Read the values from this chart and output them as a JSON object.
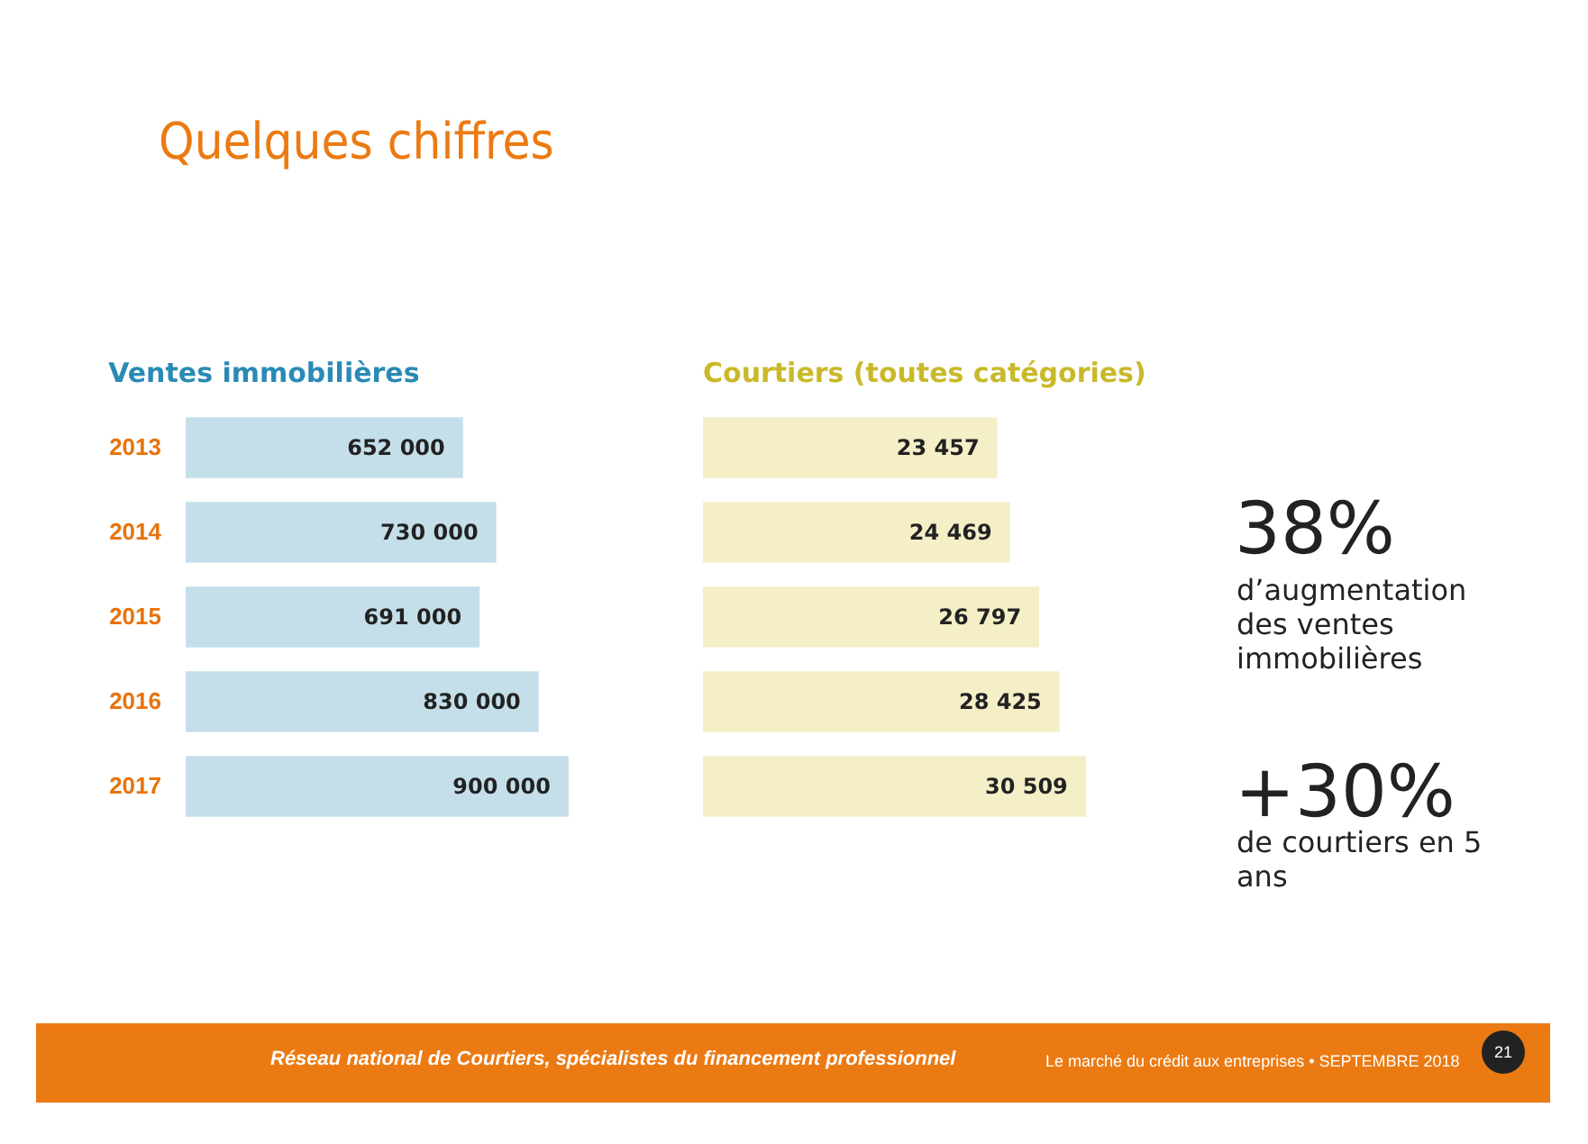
{
  "chart_data": [
    {
      "type": "other",
      "title": "Quelques chiffres"
    },
    {
      "type": "bar",
      "orientation": "horizontal",
      "title": "Ventes immobilières",
      "categories": [
        "2013",
        "2014",
        "2015",
        "2016",
        "2017"
      ],
      "values": [
        652000,
        730000,
        691000,
        830000,
        900000
      ],
      "value_labels": [
        "652 000",
        "730 000",
        "691 000",
        "830 000",
        "900 000"
      ],
      "color": "#c4dfea"
    },
    {
      "type": "bar",
      "orientation": "horizontal",
      "title": "Courtiers (toutes catégories)",
      "categories": [
        "2013",
        "2014",
        "2015",
        "2016",
        "2017"
      ],
      "values": [
        23457,
        24469,
        26797,
        28425,
        30509
      ],
      "value_labels": [
        "23 457",
        "24 469",
        "26 797",
        "28 425",
        "30 509"
      ],
      "color": "#f5efc8",
      "tick_labels": false
    },
    {
      "type": "other",
      "annotations": [
        "38%",
        "d’augmentation des ventes immobilières",
        "+30%",
        "de courtiers en 5 ans",
        "Réseau national de Courtiers, spécialistes du financement professionnel",
        "Le marché du crédit aux entreprises • SEPTEMBRE 2018",
        "21"
      ]
    }
  ]
}
